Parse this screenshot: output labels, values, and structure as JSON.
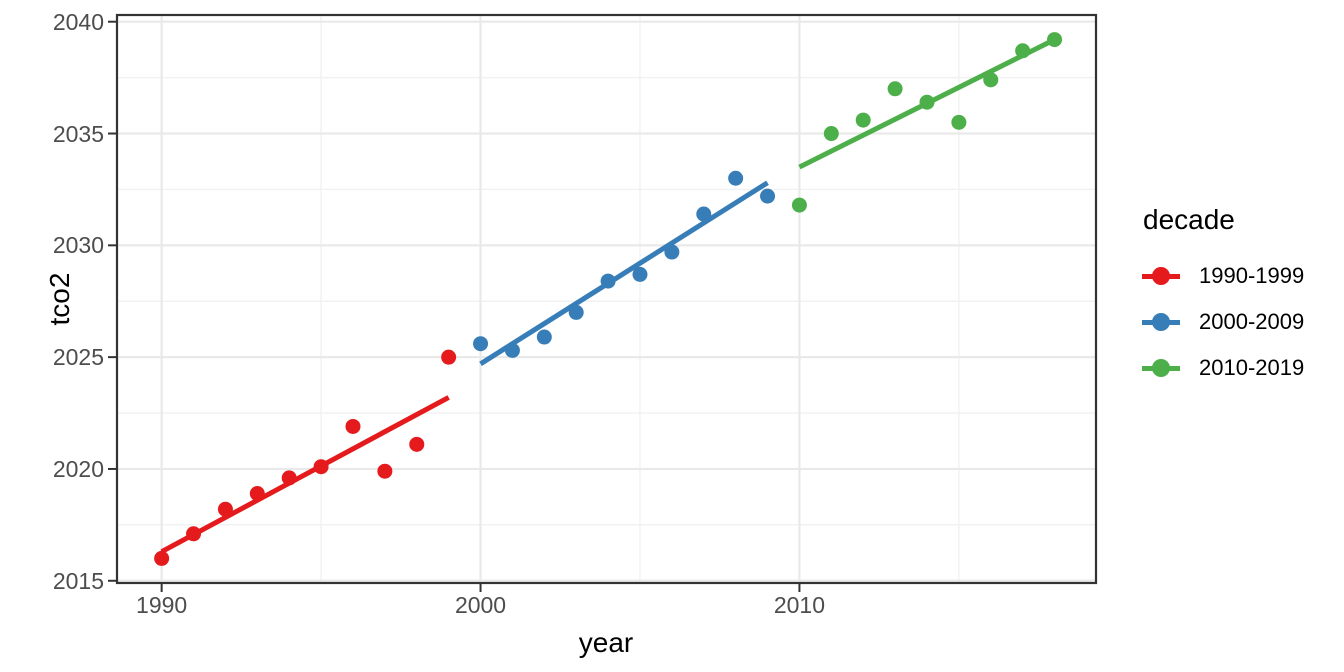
{
  "chart_data": {
    "type": "scatter",
    "title": "",
    "xlabel": "year",
    "ylabel": "tco2",
    "grid": true,
    "x_axis": {
      "lim": [
        1988.6,
        2019.3
      ],
      "major_ticks": [
        1990,
        2000,
        2010
      ],
      "minor_ticks": [
        1995,
        2005,
        2015
      ],
      "tick_labels": [
        "1990",
        "2000",
        "2010"
      ]
    },
    "y_axis": {
      "lim": [
        2014.9,
        2040.3
      ],
      "major_ticks": [
        2015,
        2020,
        2025,
        2030,
        2035,
        2040
      ],
      "minor_ticks": [
        2017.5,
        2022.5,
        2027.5,
        2032.5,
        2037.5
      ],
      "tick_labels": [
        "2015",
        "2020",
        "2025",
        "2030",
        "2035",
        "2040"
      ]
    },
    "legend": {
      "title": "decade",
      "position": "right"
    },
    "series": [
      {
        "name": "1990-1999",
        "color": "#E41A1C",
        "x": [
          1990,
          1991,
          1992,
          1993,
          1994,
          1995,
          1996,
          1997,
          1998,
          1999
        ],
        "y": [
          2016.0,
          2017.1,
          2018.2,
          2018.9,
          2019.6,
          2020.1,
          2021.9,
          2019.9,
          2021.1,
          2025.0
        ],
        "trend_line": {
          "x": [
            1990,
            1999
          ],
          "y": [
            2016.3,
            2023.2
          ]
        }
      },
      {
        "name": "2000-2009",
        "color": "#377EB8",
        "x": [
          2000,
          2001,
          2002,
          2003,
          2004,
          2005,
          2006,
          2007,
          2008,
          2009
        ],
        "y": [
          2025.6,
          2025.3,
          2025.9,
          2027.0,
          2028.4,
          2028.7,
          2029.7,
          2031.4,
          2033.0,
          2032.2
        ],
        "trend_line": {
          "x": [
            2000,
            2009
          ],
          "y": [
            2024.7,
            2032.8
          ]
        }
      },
      {
        "name": "2010-2019",
        "color": "#4DAF4A",
        "x": [
          2010,
          2011,
          2012,
          2013,
          2014,
          2015,
          2016,
          2017,
          2018
        ],
        "y": [
          2031.8,
          2035.0,
          2035.6,
          2037.0,
          2036.4,
          2035.5,
          2037.4,
          2038.7,
          2039.2
        ],
        "trend_line": {
          "x": [
            2010,
            2018
          ],
          "y": [
            2033.5,
            2039.2
          ]
        }
      }
    ],
    "styles": {
      "grid_major_color": "#E9E9E9",
      "grid_minor_color": "#F1F1F1",
      "panel_border_color": "#333333",
      "tick_mark_color": "#333333",
      "tick_label_color": "#4D4D4D",
      "background_color": "#FFFFFF",
      "point_radius": 7.5,
      "trend_line_width": 5
    }
  }
}
